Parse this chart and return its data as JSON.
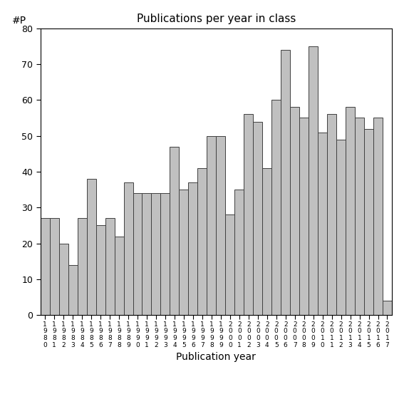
{
  "title": "Publications per year in class",
  "xlabel": "Publication year",
  "ylabel": "#P",
  "bar_color": "#c0c0c0",
  "bar_edgecolor": "#404040",
  "background_color": "#ffffff",
  "ylim": [
    0,
    80
  ],
  "yticks": [
    0,
    10,
    20,
    30,
    40,
    50,
    60,
    70,
    80
  ],
  "years": [
    1980,
    1981,
    1982,
    1983,
    1984,
    1985,
    1986,
    1987,
    1988,
    1989,
    1990,
    1991,
    1992,
    1993,
    1994,
    1995,
    1996,
    1997,
    1998,
    1999,
    2000,
    2001,
    2002,
    2003,
    2004,
    2005,
    2006,
    2007,
    2008,
    2009,
    2010,
    2011,
    2012,
    2013,
    2014,
    2015,
    2016,
    2017
  ],
  "values": [
    27,
    27,
    20,
    14,
    27,
    38,
    25,
    27,
    22,
    37,
    34,
    34,
    34,
    34,
    47,
    35,
    37,
    41,
    50,
    50,
    28,
    35,
    56,
    54,
    41,
    60,
    74,
    58,
    55,
    75,
    51,
    56,
    49,
    58,
    55,
    52,
    55,
    4
  ]
}
